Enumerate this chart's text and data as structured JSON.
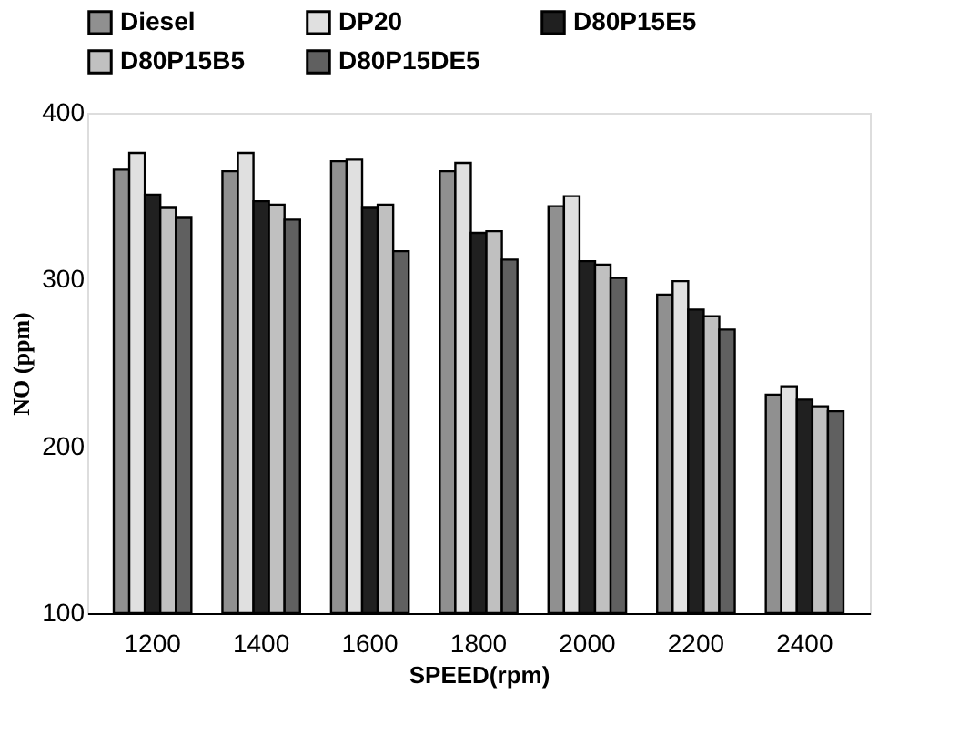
{
  "chart_data": {
    "type": "bar",
    "xlabel": "SPEED(rpm)",
    "ylabel": "NO (ppm)",
    "categories": [
      "1200",
      "1400",
      "1600",
      "1800",
      "2000",
      "2200",
      "2400"
    ],
    "series": [
      {
        "name": "Diesel",
        "color": "#909090",
        "values": [
          366,
          365,
          371,
          365,
          344,
          291,
          231
        ]
      },
      {
        "name": "DP20",
        "color": "#e0e0e0",
        "values": [
          376,
          376,
          372,
          370,
          350,
          299,
          236
        ]
      },
      {
        "name": "D80P15E5",
        "color": "#202020",
        "values": [
          351,
          347,
          343,
          328,
          311,
          282,
          228
        ]
      },
      {
        "name": "D80P15B5",
        "color": "#c0c0c0",
        "values": [
          343,
          345,
          345,
          329,
          309,
          278,
          224
        ]
      },
      {
        "name": "D80P15DE5",
        "color": "#606060",
        "values": [
          337,
          336,
          317,
          312,
          301,
          270,
          221
        ]
      }
    ],
    "ylim": [
      100,
      400
    ],
    "yticks": [
      100,
      200,
      300,
      400
    ],
    "grid": false,
    "legend": "top"
  }
}
